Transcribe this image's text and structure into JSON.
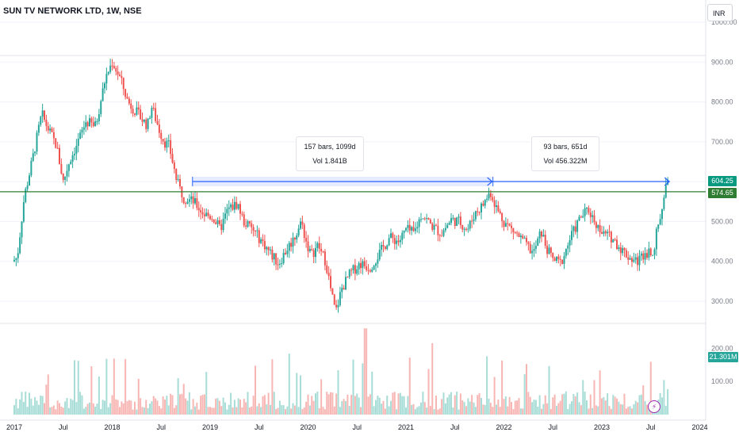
{
  "header": {
    "title": "SUN TV NETWORK LTD, 1W, NSE",
    "currency": "INR"
  },
  "measurements": [
    {
      "bars_label": "157 bars, 1099d",
      "vol_label": "Vol 1.841B"
    },
    {
      "bars_label": "93 bars, 651d",
      "vol_label": "Vol 456.322M"
    }
  ],
  "price_tags": {
    "last": "604.25",
    "level": "574.65",
    "volume": "21.301M"
  },
  "colors": {
    "up": "#26a69a",
    "down": "#ef5350",
    "level_line": "#2e7d32",
    "range_arrow": "#2962ff"
  },
  "chart_data": {
    "type": "candlestick",
    "title": "SUN TV NETWORK LTD, 1W, NSE",
    "price_axis": {
      "ylim": [
        240,
        1040
      ],
      "ticks": [
        "1000.00",
        "900.00",
        "800.00",
        "700.00",
        "600.00",
        "500.00",
        "400.00",
        "300.00"
      ]
    },
    "volume_axis": {
      "ylim": [
        0,
        270
      ],
      "ticks": [
        "200.00",
        "100.00"
      ],
      "unit": "M"
    },
    "time_axis": {
      "ticks": [
        "2017",
        "Jul",
        "2018",
        "Jul",
        "2019",
        "Jul",
        "2020",
        "Jul",
        "2021",
        "Jul",
        "2022",
        "Jul",
        "2023",
        "Jul",
        "2024"
      ]
    },
    "horizontal_line": 574.65,
    "last_price": 604.25,
    "last_volume": 21.301,
    "price_path": [
      [
        2017.0,
        400
      ],
      [
        2017.05,
        410
      ],
      [
        2017.12,
        560
      ],
      [
        2017.2,
        650
      ],
      [
        2017.3,
        770
      ],
      [
        2017.35,
        740
      ],
      [
        2017.45,
        690
      ],
      [
        2017.52,
        600
      ],
      [
        2017.58,
        650
      ],
      [
        2017.67,
        700
      ],
      [
        2017.75,
        750
      ],
      [
        2017.85,
        740
      ],
      [
        2017.95,
        860
      ],
      [
        2018.02,
        900
      ],
      [
        2018.1,
        860
      ],
      [
        2018.18,
        800
      ],
      [
        2018.28,
        770
      ],
      [
        2018.38,
        740
      ],
      [
        2018.42,
        790
      ],
      [
        2018.5,
        730
      ],
      [
        2018.55,
        700
      ],
      [
        2018.6,
        690
      ],
      [
        2018.68,
        600
      ],
      [
        2018.75,
        560
      ],
      [
        2018.85,
        550
      ],
      [
        2018.95,
        520
      ],
      [
        2019.05,
        510
      ],
      [
        2019.12,
        480
      ],
      [
        2019.2,
        530
      ],
      [
        2019.3,
        545
      ],
      [
        2019.36,
        500
      ],
      [
        2019.45,
        480
      ],
      [
        2019.55,
        450
      ],
      [
        2019.65,
        415
      ],
      [
        2019.72,
        395
      ],
      [
        2019.8,
        430
      ],
      [
        2019.88,
        460
      ],
      [
        2019.95,
        500
      ],
      [
        2020.0,
        450
      ],
      [
        2020.05,
        415
      ],
      [
        2020.12,
        440
      ],
      [
        2020.2,
        400
      ],
      [
        2020.25,
        330
      ],
      [
        2020.3,
        270
      ],
      [
        2020.36,
        330
      ],
      [
        2020.45,
        370
      ],
      [
        2020.55,
        395
      ],
      [
        2020.65,
        385
      ],
      [
        2020.75,
        420
      ],
      [
        2020.85,
        460
      ],
      [
        2020.95,
        450
      ],
      [
        2021.02,
        480
      ],
      [
        2021.1,
        470
      ],
      [
        2021.18,
        520
      ],
      [
        2021.28,
        490
      ],
      [
        2021.38,
        470
      ],
      [
        2021.48,
        505
      ],
      [
        2021.56,
        500
      ],
      [
        2021.65,
        480
      ],
      [
        2021.72,
        520
      ],
      [
        2021.8,
        540
      ],
      [
        2021.88,
        575
      ],
      [
        2021.95,
        530
      ],
      [
        2022.02,
        500
      ],
      [
        2022.1,
        480
      ],
      [
        2022.18,
        460
      ],
      [
        2022.25,
        440
      ],
      [
        2022.32,
        420
      ],
      [
        2022.4,
        475
      ],
      [
        2022.46,
        430
      ],
      [
        2022.52,
        405
      ],
      [
        2022.6,
        395
      ],
      [
        2022.7,
        460
      ],
      [
        2022.8,
        510
      ],
      [
        2022.88,
        530
      ],
      [
        2022.95,
        500
      ],
      [
        2023.02,
        470
      ],
      [
        2023.12,
        460
      ],
      [
        2023.22,
        430
      ],
      [
        2023.3,
        410
      ],
      [
        2023.38,
        400
      ],
      [
        2023.45,
        420
      ],
      [
        2023.55,
        430
      ],
      [
        2023.6,
        500
      ],
      [
        2023.66,
        560
      ],
      [
        2023.69,
        604
      ]
    ]
  }
}
